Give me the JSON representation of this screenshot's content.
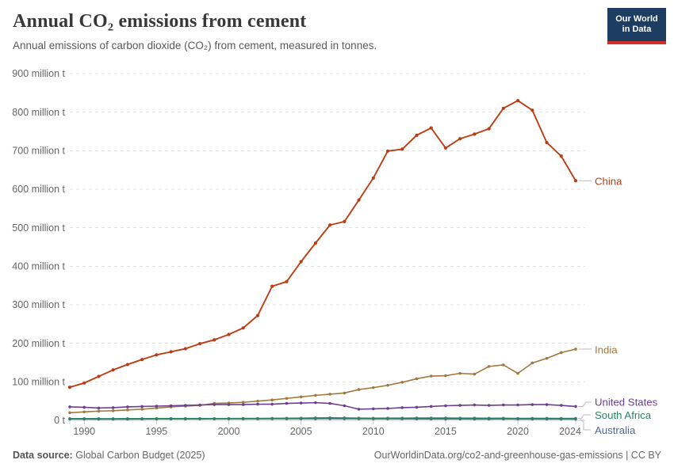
{
  "header": {
    "title": "Annual CO₂ emissions from cement",
    "subtitle": "Annual emissions of carbon dioxide (CO₂) from cement, measured in tonnes.",
    "logo": {
      "line1": "Our World",
      "line2": "in Data",
      "bg_color": "#1d3d63",
      "accent_color": "#cf3126"
    }
  },
  "footer": {
    "source_label": "Data source:",
    "source_value": "Global Carbon Budget (2025)",
    "note": "OurWorldinData.org/co2-and-greenhouse-gas-emissions | CC BY"
  },
  "chart_data": {
    "type": "line",
    "title": "Annual CO₂ emissions from cement",
    "unit": "million tonnes of CO₂",
    "grid": "horizontal-dashed",
    "legend_position": "right-of-line-ends",
    "x_range": [
      1989,
      2024
    ],
    "ylim": [
      0,
      900
    ],
    "yticks": [
      {
        "value": 0,
        "label": "0 t"
      },
      {
        "value": 100,
        "label": "100 million t"
      },
      {
        "value": 200,
        "label": "200 million t"
      },
      {
        "value": 300,
        "label": "300 million t"
      },
      {
        "value": 400,
        "label": "400 million t"
      },
      {
        "value": 500,
        "label": "500 million t"
      },
      {
        "value": 600,
        "label": "600 million t"
      },
      {
        "value": 700,
        "label": "700 million t"
      },
      {
        "value": 800,
        "label": "800 million t"
      },
      {
        "value": 900,
        "label": "900 million t"
      }
    ],
    "xticks": [
      {
        "year": 1990,
        "label": "1990"
      },
      {
        "year": 1995,
        "label": "1995"
      },
      {
        "year": 2000,
        "label": "2000"
      },
      {
        "year": 2005,
        "label": "2005"
      },
      {
        "year": 2010,
        "label": "2010"
      },
      {
        "year": 2015,
        "label": "2015"
      },
      {
        "year": 2020,
        "label": "2020"
      },
      {
        "year": 2024,
        "label": "2024"
      }
    ],
    "x": [
      1989,
      1990,
      1991,
      1992,
      1993,
      1994,
      1995,
      1996,
      1997,
      1998,
      1999,
      2000,
      2001,
      2002,
      2003,
      2004,
      2005,
      2006,
      2007,
      2008,
      2009,
      2010,
      2011,
      2012,
      2013,
      2014,
      2015,
      2016,
      2017,
      2018,
      2019,
      2020,
      2021,
      2022,
      2023,
      2024
    ],
    "series": [
      {
        "name": "China",
        "color": "#BC3D13",
        "values": [
          86,
          97,
          114,
          131,
          145,
          158,
          170,
          178,
          186,
          199,
          209,
          223,
          240,
          272,
          348,
          360,
          412,
          460,
          507,
          516,
          572,
          629,
          699,
          704,
          740,
          759,
          707,
          731,
          743,
          757,
          810,
          830,
          805,
          721,
          686,
          622
        ]
      },
      {
        "name": "India",
        "color": "#A2793D",
        "values": [
          20,
          22,
          24,
          25,
          27,
          29,
          32,
          35,
          37,
          39,
          44,
          45,
          47,
          50,
          53,
          57,
          61,
          65,
          68,
          71,
          80,
          85,
          91,
          99,
          108,
          115,
          116,
          122,
          120,
          140,
          144,
          122,
          149,
          161,
          176,
          185
        ]
      },
      {
        "name": "United States",
        "color": "#6D3E91",
        "values": [
          35,
          34,
          32,
          33,
          35,
          36,
          37,
          38,
          39,
          40,
          41,
          41,
          41,
          42,
          42,
          44,
          45,
          46,
          44,
          38,
          29,
          30,
          31,
          33,
          34,
          36,
          38,
          39,
          40,
          39,
          40,
          40,
          41,
          41,
          39,
          36
        ]
      },
      {
        "name": "South Africa",
        "color": "#2C8465",
        "values": [
          4.5,
          4.5,
          4.4,
          4.3,
          4.4,
          4.6,
          4.8,
          4.9,
          4.9,
          4.8,
          4.7,
          4.9,
          5.0,
          5.1,
          5.3,
          5.6,
          5.9,
          6.2,
          6.5,
          6.4,
          5.8,
          5.6,
          5.7,
          5.9,
          6.0,
          6.1,
          6.0,
          5.8,
          5.7,
          5.6,
          5.5,
          5.0,
          5.2,
          5.3,
          5.1,
          5.0
        ]
      },
      {
        "name": "Australia",
        "color": "#4C6A9C",
        "values": [
          3.4,
          3.4,
          3.3,
          3.2,
          3.3,
          3.5,
          3.6,
          3.7,
          3.7,
          3.8,
          3.9,
          4.0,
          3.9,
          4.0,
          4.1,
          4.2,
          4.3,
          4.3,
          4.4,
          4.3,
          4.1,
          4.0,
          4.0,
          3.9,
          3.8,
          3.7,
          3.6,
          3.6,
          3.5,
          3.5,
          3.6,
          3.5,
          3.4,
          3.5,
          3.4,
          3.3
        ]
      }
    ]
  }
}
